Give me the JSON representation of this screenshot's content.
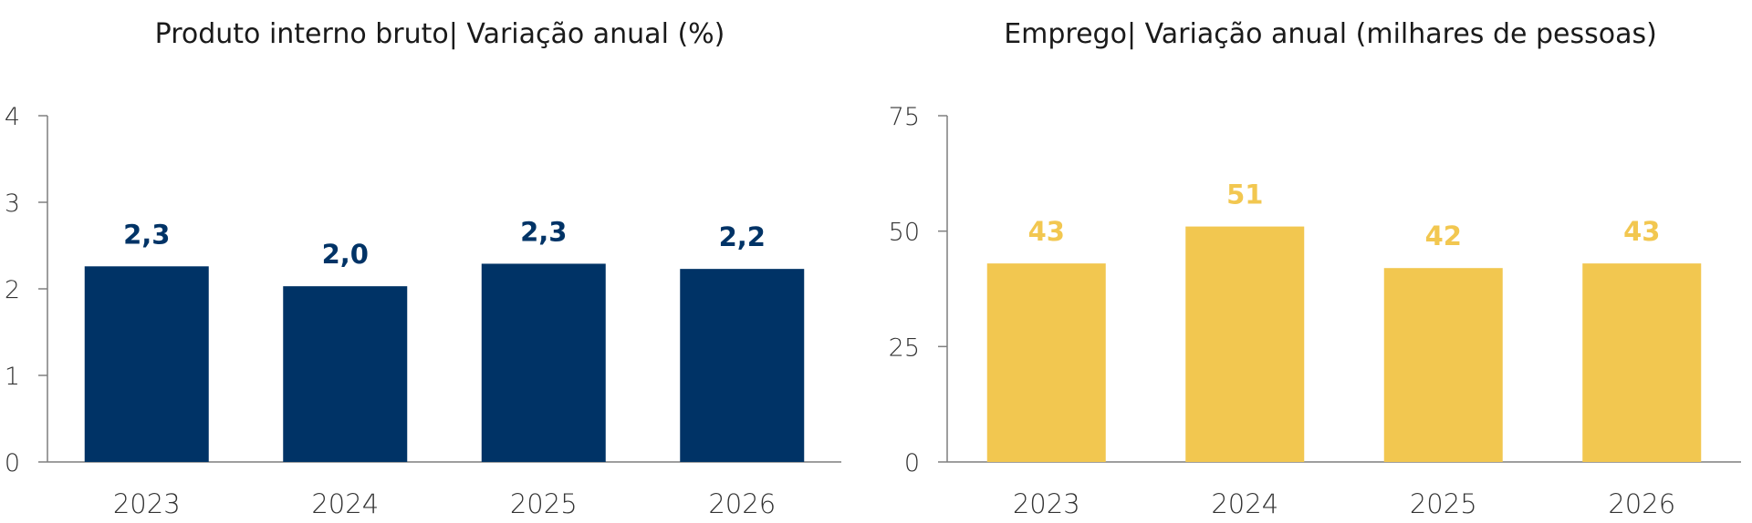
{
  "chart_data": [
    {
      "type": "bar",
      "title": "Produto interno bruto| Variação anual (%)",
      "categories": [
        "2023",
        "2024",
        "2025",
        "2026"
      ],
      "values": [
        2.26,
        2.03,
        2.29,
        2.23
      ],
      "data_labels": [
        "2,3",
        "2,0",
        "2,3",
        "2,2"
      ],
      "ylim": [
        0,
        4
      ],
      "yticks": [
        0,
        1,
        2,
        3,
        4
      ],
      "ytick_labels": [
        "0",
        "1",
        "2",
        "3",
        "4"
      ],
      "xlabel": "",
      "ylabel": "",
      "bar_color": "#003366",
      "label_color": "#003366",
      "grid": false,
      "legend": "none"
    },
    {
      "type": "bar",
      "title": "Emprego| Variação anual (milhares de pessoas)",
      "categories": [
        "2023",
        "2024",
        "2025",
        "2026"
      ],
      "values": [
        43,
        51,
        42,
        43
      ],
      "data_labels": [
        "43",
        "51",
        "42",
        "43"
      ],
      "ylim": [
        0,
        75
      ],
      "yticks": [
        0,
        25,
        50,
        75
      ],
      "ytick_labels": [
        "0",
        "25",
        "50",
        "75"
      ],
      "xlabel": "",
      "ylabel": "",
      "bar_color": "#F2C750",
      "label_color": "#F2C750",
      "grid": false,
      "legend": "none"
    }
  ]
}
